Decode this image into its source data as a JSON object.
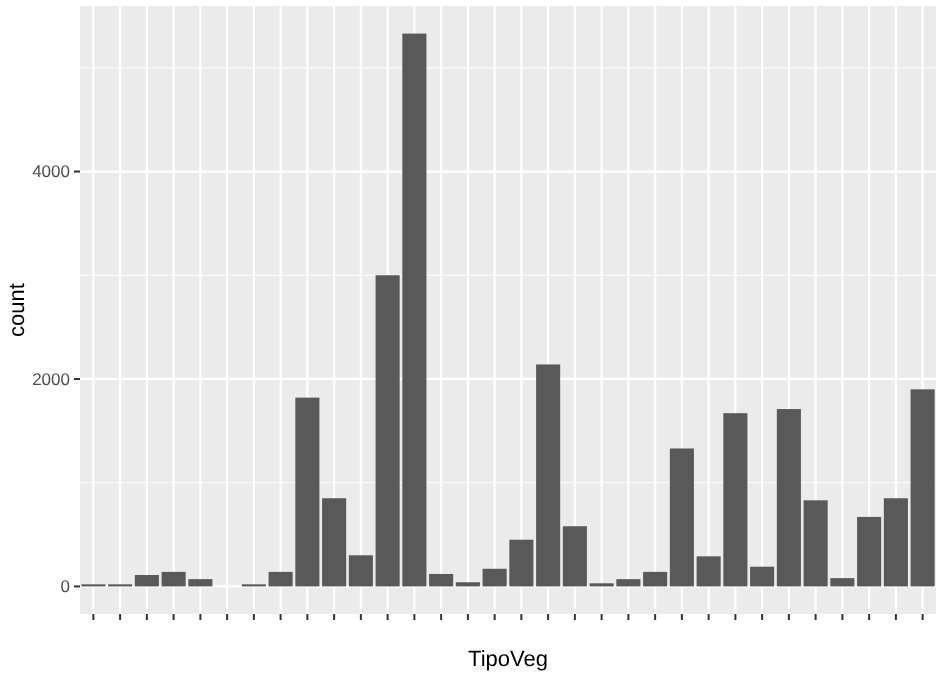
{
  "chart_data": {
    "type": "bar",
    "xlabel": "TipoVeg",
    "ylabel": "count",
    "categories": [
      null,
      null,
      null,
      null,
      null,
      null,
      null,
      null,
      null,
      null,
      null,
      null,
      null,
      null,
      null,
      null,
      null,
      null,
      null,
      null,
      null,
      null,
      null,
      null,
      null,
      null,
      null,
      null,
      null,
      null,
      null,
      null
    ],
    "values": [
      20,
      20,
      110,
      140,
      70,
      0,
      20,
      140,
      1820,
      850,
      300,
      3000,
      5330,
      120,
      40,
      170,
      450,
      2140,
      580,
      30,
      70,
      140,
      1330,
      290,
      1670,
      190,
      1710,
      830,
      80,
      670,
      850,
      1900
    ],
    "color": "#595959",
    "ylim": [
      -266,
      5596
    ],
    "yticks": [
      0,
      2000,
      4000
    ],
    "grid": true
  }
}
